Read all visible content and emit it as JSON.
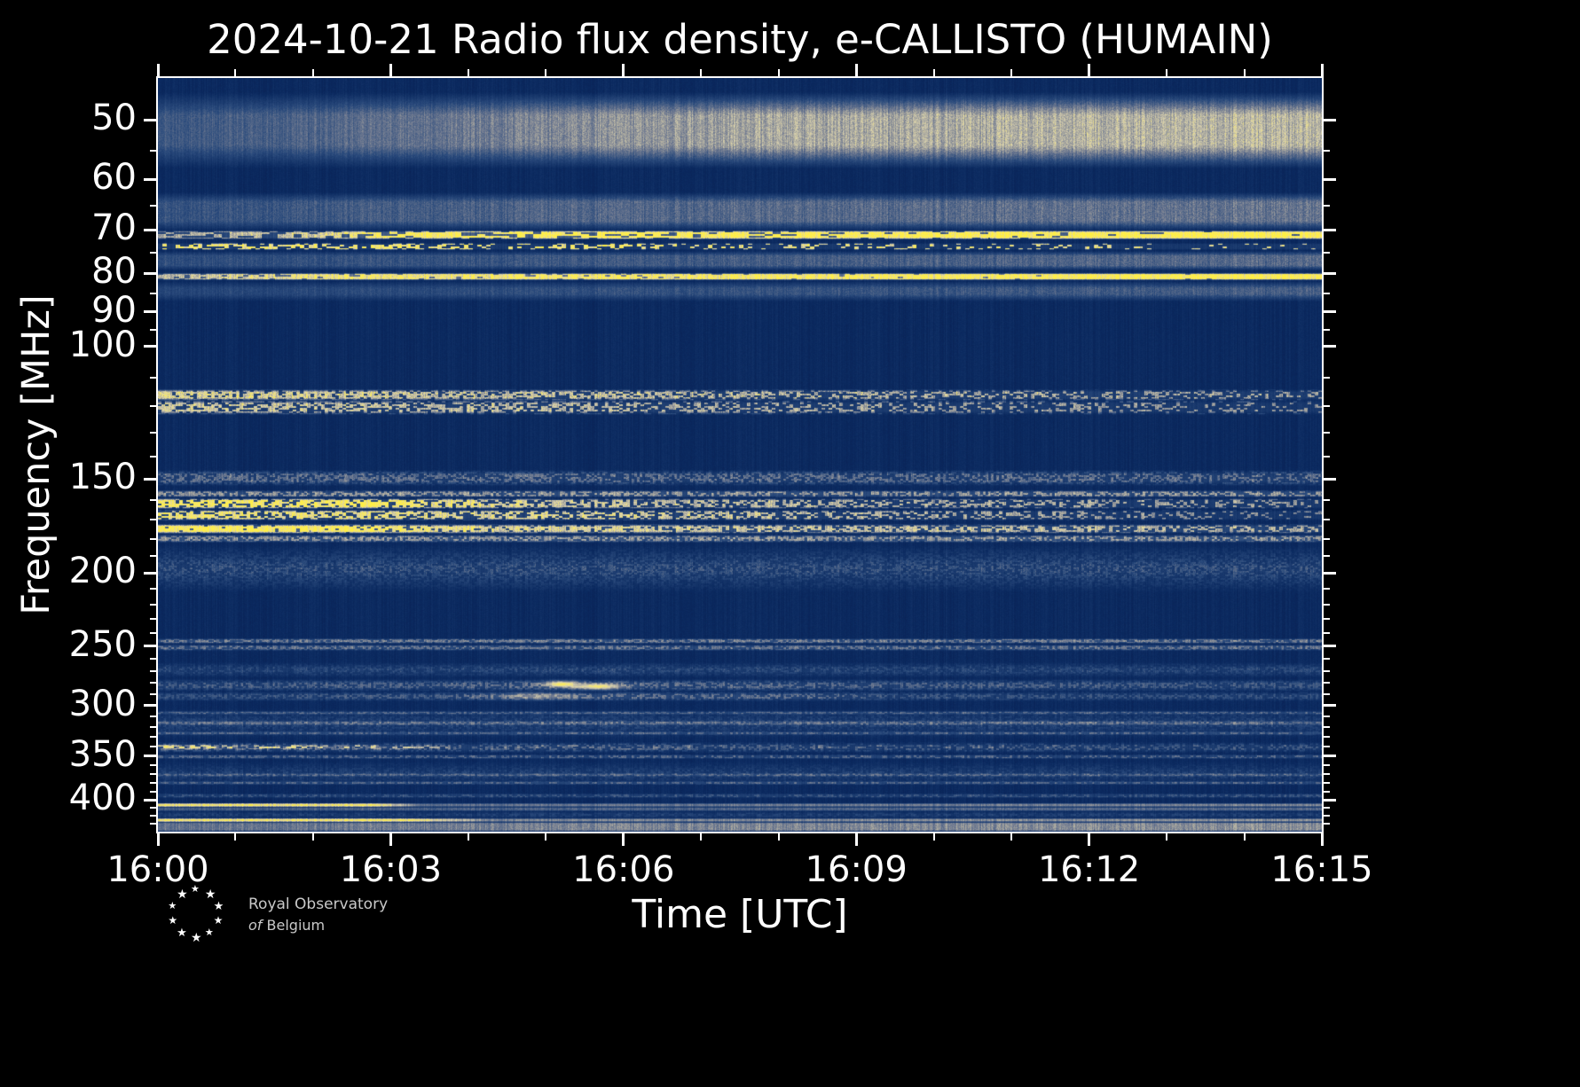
{
  "footer": {
    "org_line1": "Royal Observatory",
    "of_word": "of",
    "org_name": "Belgium",
    "star_glyph": "★"
  },
  "chart_data": {
    "type": "heatmap",
    "subtype": "radio-spectrogram",
    "title": "2024-10-21 Radio flux density, e-CALLISTO (HUMAIN)",
    "xlabel": "Time [UTC]",
    "ylabel": "Frequency [MHz]",
    "time_range_min": [
      0,
      15
    ],
    "x_ticks": {
      "labels": [
        "16:00",
        "16:03",
        "16:06",
        "16:09",
        "16:12",
        "16:15"
      ],
      "minutes": [
        0,
        3,
        6,
        9,
        12,
        15
      ]
    },
    "x_minor_ticks_min": [
      1,
      2,
      4,
      5,
      7,
      8,
      10,
      11,
      13,
      14
    ],
    "freq_range_mhz": [
      44,
      441
    ],
    "y_scale": "log",
    "y_axis_inverted": true,
    "y_ticks": [
      50,
      60,
      70,
      80,
      90,
      100,
      150,
      200,
      250,
      300,
      350,
      400
    ],
    "y_minor_ticks": [
      55,
      65,
      75,
      85,
      95,
      110,
      120,
      130,
      140,
      160,
      170,
      180,
      190,
      210,
      220,
      230,
      240,
      260,
      270,
      280,
      290,
      310,
      320,
      330,
      340,
      360,
      370,
      380,
      390,
      410,
      420,
      430
    ],
    "colormap": [
      [
        0,
        "#07194a"
      ],
      [
        0.12,
        "#0b2a60"
      ],
      [
        0.3,
        "#2a4a7c"
      ],
      [
        0.48,
        "#6d7890"
      ],
      [
        0.62,
        "#a8a79f"
      ],
      [
        0.75,
        "#d6cfae"
      ],
      [
        0.87,
        "#f2e47e"
      ],
      [
        1,
        "#ffef45"
      ]
    ],
    "background_level": 0.1,
    "bands": [
      {
        "f0": 46,
        "f1": 58,
        "a": 0.74,
        "soft": 0.3,
        "grain": 0.3,
        "env": [
          [
            0,
            0.42
          ],
          [
            2,
            0.52
          ],
          [
            5,
            0.72
          ],
          [
            8,
            0.92
          ],
          [
            15,
            1
          ]
        ]
      },
      {
        "f0": 62.5,
        "f1": 70,
        "a": 0.5,
        "soft": 0.25,
        "grain": 0.35,
        "env": [
          [
            0,
            0.58
          ],
          [
            5,
            0.78
          ],
          [
            15,
            0.95
          ]
        ]
      },
      {
        "f0": 70.2,
        "f1": 71.9,
        "a": 0.98,
        "soft": 0.2,
        "spk": [
          0.55,
          1
        ],
        "off": 0.3,
        "cw": 9,
        "env": [
          [
            0,
            0.55
          ],
          [
            2,
            0.7
          ],
          [
            3,
            0.95
          ],
          [
            15,
            1
          ]
        ]
      },
      {
        "f0": 72.9,
        "f1": 74.3,
        "a": 0.88,
        "soft": 0.2,
        "spk": [
          0.5,
          0.08
        ],
        "off": 0.12,
        "cw": 5,
        "env": [
          [
            0,
            1
          ],
          [
            15,
            0.85
          ]
        ]
      },
      {
        "f0": 74.8,
        "f1": 79.2,
        "a": 0.47,
        "soft": 0.25,
        "grain": 0.35,
        "env": [
          [
            0,
            0.55
          ],
          [
            15,
            0.9
          ]
        ]
      },
      {
        "f0": 79.9,
        "f1": 81.6,
        "a": 0.97,
        "soft": 0.2,
        "spk": [
          0.8,
          1
        ],
        "off": 0.45,
        "cw": 6,
        "env": [
          [
            0,
            0.6
          ],
          [
            2,
            0.85
          ],
          [
            15,
            1
          ]
        ]
      },
      {
        "f0": 82,
        "f1": 87,
        "a": 0.44,
        "soft": 0.35,
        "grain": 0.35,
        "env": [
          [
            0,
            0.48
          ],
          [
            15,
            0.82
          ]
        ]
      },
      {
        "f0": 114,
        "f1": 118,
        "a": 0.88,
        "soft": 0.25,
        "spk": [
          0.85,
          0.28
        ],
        "off": 0.22,
        "cw": 4,
        "grain": 0.3,
        "env": [
          [
            0,
            1
          ],
          [
            4,
            0.85
          ],
          [
            15,
            0.7
          ]
        ]
      },
      {
        "f0": 118,
        "f1": 123,
        "a": 0.72,
        "soft": 0.25,
        "spk": [
          0.6,
          0.2
        ],
        "off": 0.2,
        "cw": 4,
        "env": [
          [
            0,
            0.95
          ],
          [
            15,
            0.65
          ]
        ]
      },
      {
        "f0": 146,
        "f1": 153,
        "a": 0.42,
        "soft": 0.3,
        "spk": [
          0.55,
          0.45
        ],
        "off": 0.35,
        "grain": 0.3
      },
      {
        "f0": 155.5,
        "f1": 158.5,
        "a": 0.5,
        "soft": 0.25,
        "spk": [
          0.6,
          0.5
        ],
        "off": 0.4
      },
      {
        "f0": 159.5,
        "f1": 164,
        "a": 0.9,
        "soft": 0.2,
        "spk": [
          0.75,
          0.3
        ],
        "off": 0.2,
        "cw": 4,
        "env": [
          [
            0,
            1
          ],
          [
            3,
            1
          ],
          [
            5,
            0.72
          ],
          [
            15,
            0.55
          ]
        ]
      },
      {
        "f0": 165,
        "f1": 170,
        "a": 0.86,
        "soft": 0.2,
        "spk": [
          0.7,
          0.25
        ],
        "off": 0.2,
        "cw": 4,
        "env": [
          [
            0,
            1
          ],
          [
            3,
            0.9
          ],
          [
            15,
            0.5
          ]
        ]
      },
      {
        "f0": 172.5,
        "f1": 177,
        "a": 0.94,
        "soft": 0.25,
        "spk": [
          0.95,
          0.4
        ],
        "off": 0.3,
        "cw": 4,
        "env": [
          [
            0,
            1
          ],
          [
            2.5,
            1
          ],
          [
            4.5,
            0.75
          ],
          [
            15,
            0.6
          ]
        ]
      },
      {
        "f0": 178,
        "f1": 182,
        "a": 0.5,
        "soft": 0.3,
        "spk": [
          0.6,
          0.5
        ],
        "off": 0.45
      },
      {
        "f0": 184,
        "f1": 212,
        "a": 0.3,
        "soft": 0.45,
        "spk": [
          0.55,
          0.48
        ],
        "off": 0.45,
        "grain": 0.4
      },
      {
        "f0": 244.5,
        "f1": 248,
        "a": 0.42,
        "soft": 0.3,
        "spk": [
          0.65,
          0.6
        ],
        "off": 0.5
      },
      {
        "f0": 249.5,
        "f1": 253,
        "a": 0.38,
        "soft": 0.3,
        "spk": [
          0.6,
          0.55
        ],
        "off": 0.5
      },
      {
        "f0": 263,
        "f1": 275,
        "a": 0.24,
        "soft": 0.4,
        "spk": [
          0.5,
          0.5
        ],
        "off": 0.5,
        "grain": 0.4
      },
      {
        "f0": 277,
        "f1": 287,
        "a": 0.35,
        "soft": 0.35,
        "spk": [
          0.55,
          0.5
        ],
        "off": 0.45,
        "env": [
          [
            0,
            0.8
          ],
          [
            3.5,
            0.9
          ],
          [
            5,
            1.1
          ],
          [
            9,
            0.9
          ],
          [
            15,
            0.75
          ]
        ]
      },
      {
        "f0": 288,
        "f1": 296,
        "a": 0.36,
        "soft": 0.35,
        "spk": [
          0.6,
          0.5
        ],
        "off": 0.45,
        "env": [
          [
            0,
            0.65
          ],
          [
            3.5,
            0.8
          ],
          [
            4.5,
            1.05
          ],
          [
            8.5,
            1
          ],
          [
            9.5,
            0.7
          ],
          [
            15,
            0.62
          ]
        ]
      },
      {
        "f0": 303,
        "f1": 331,
        "a": 0.22,
        "soft": 0.45,
        "spk": [
          0.5,
          0.45
        ],
        "off": 0.5,
        "grain": 0.4
      },
      {
        "f0": 305,
        "f1": 308,
        "a": 0.3,
        "soft": 0.3,
        "spk": [
          0.55,
          0.5
        ],
        "off": 0.5
      },
      {
        "f0": 315,
        "f1": 318,
        "a": 0.3,
        "soft": 0.3,
        "spk": [
          0.55,
          0.5
        ],
        "off": 0.5
      },
      {
        "f0": 325,
        "f1": 328,
        "a": 0.3,
        "soft": 0.3,
        "spk": [
          0.55,
          0.5
        ],
        "off": 0.5
      },
      {
        "f0": 336,
        "f1": 346,
        "a": 0.38,
        "soft": 0.3,
        "spk": [
          0.5,
          0.28
        ],
        "off": 0.35,
        "env": [
          [
            0,
            1
          ],
          [
            4,
            0.8
          ],
          [
            15,
            0.62
          ]
        ]
      },
      {
        "f0": 339,
        "f1": 342,
        "a": 0.72,
        "soft": 0.2,
        "spk": [
          0.45,
          0.1
        ],
        "off": 0.12,
        "cw": 6,
        "env": [
          [
            0,
            1
          ],
          [
            3.2,
            0.8
          ],
          [
            4,
            0.3
          ],
          [
            15,
            0.22
          ]
        ]
      },
      {
        "f0": 349,
        "f1": 353,
        "a": 0.32,
        "soft": 0.3,
        "spk": [
          0.55,
          0.45
        ],
        "off": 0.45
      },
      {
        "f0": 356,
        "f1": 383,
        "a": 0.2,
        "soft": 0.45,
        "spk": [
          0.45,
          0.4
        ],
        "off": 0.5,
        "grain": 0.4
      },
      {
        "f0": 369,
        "f1": 372,
        "a": 0.27,
        "soft": 0.3,
        "spk": [
          0.55,
          0.5
        ],
        "off": 0.5
      },
      {
        "f0": 378,
        "f1": 381.5,
        "a": 0.3,
        "soft": 0.3,
        "spk": [
          0.55,
          0.5
        ],
        "off": 0.5
      },
      {
        "f0": 393,
        "f1": 397,
        "a": 0.24,
        "soft": 0.3,
        "spk": [
          0.5,
          0.5
        ],
        "off": 0.5
      },
      {
        "f0": 404.5,
        "f1": 408.5,
        "a": 0.98,
        "soft": 0.2,
        "grain": 0.15,
        "env": [
          [
            0,
            1
          ],
          [
            2.8,
            1
          ],
          [
            3.4,
            0.42
          ],
          [
            15,
            0.5
          ]
        ]
      },
      {
        "f0": 409.5,
        "f1": 413.5,
        "a": 0.42,
        "soft": 0.3,
        "grain": 0.3,
        "env": [
          [
            0,
            0.8
          ],
          [
            15,
            0.95
          ]
        ]
      },
      {
        "f0": 415,
        "f1": 423,
        "a": 0.16,
        "soft": 0.4,
        "spk": [
          0.5,
          0.45
        ],
        "off": 0.5
      },
      {
        "f0": 424,
        "f1": 428,
        "a": 0.98,
        "soft": 0.2,
        "grain": 0.15,
        "env": [
          [
            0,
            1
          ],
          [
            3.3,
            1
          ],
          [
            4.3,
            0.5
          ],
          [
            15,
            0.55
          ]
        ]
      },
      {
        "f0": 429,
        "f1": 441,
        "a": 0.56,
        "soft": 0.15,
        "grain": 0.25,
        "env": [
          [
            0,
            0.78
          ],
          [
            6,
            0.92
          ],
          [
            15,
            1
          ]
        ]
      }
    ],
    "blobs": [
      {
        "t": 5.2,
        "f": 280.5,
        "dt": 0.22,
        "df": 2.5,
        "a": 0.9
      },
      {
        "t": 5.65,
        "f": 282.5,
        "dt": 0.3,
        "df": 2.5,
        "a": 0.85
      },
      {
        "t": 4.9,
        "f": 291,
        "dt": 0.5,
        "df": 3,
        "a": 0.35
      }
    ]
  }
}
